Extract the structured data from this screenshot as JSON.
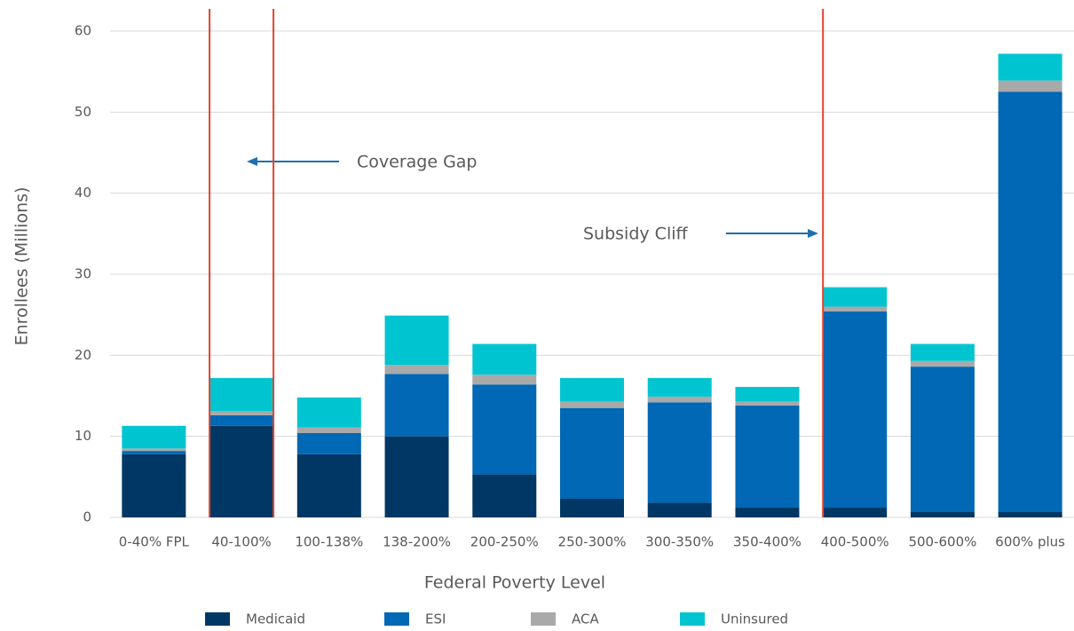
{
  "chart_data": {
    "type": "stacked_bar",
    "x_label": "Federal Poverty Level",
    "y_label": "Enrollees (Millions)",
    "annotations": [
      "Coverage Gap",
      "Subsidy Cliff"
    ],
    "categories": [
      "0-40% FPL",
      "40-100%",
      "100-138%",
      "138-200%",
      "200-250%",
      "250-300%",
      "300-350%",
      "350-400%",
      "400-500%",
      "500-600%",
      "600% plus"
    ],
    "series": [
      {
        "name": "Medicaid",
        "color": "#003764",
        "values": [
          7.8,
          11.3,
          7.8,
          10.0,
          5.3,
          2.3,
          1.8,
          1.2,
          1.2,
          0.7,
          0.7
        ]
      },
      {
        "name": "ESI",
        "color": "#0068b4",
        "values": [
          0.4,
          1.3,
          2.6,
          7.7,
          11.1,
          11.2,
          12.4,
          12.6,
          24.2,
          17.9,
          51.8
        ]
      },
      {
        "name": "ACA",
        "color": "#a9a9a9",
        "values": [
          0.3,
          0.5,
          0.7,
          1.1,
          1.2,
          0.8,
          0.7,
          0.5,
          0.6,
          0.7,
          1.4
        ]
      },
      {
        "name": "Uninsured",
        "color": "#00c5d1",
        "values": [
          2.8,
          4.1,
          3.7,
          6.1,
          3.8,
          2.9,
          2.3,
          1.8,
          2.4,
          2.1,
          3.3
        ]
      }
    ],
    "ylim": [
      0,
      60
    ],
    "yticks": [
      0,
      10,
      20,
      30,
      40,
      50,
      60
    ],
    "grid": true
  }
}
